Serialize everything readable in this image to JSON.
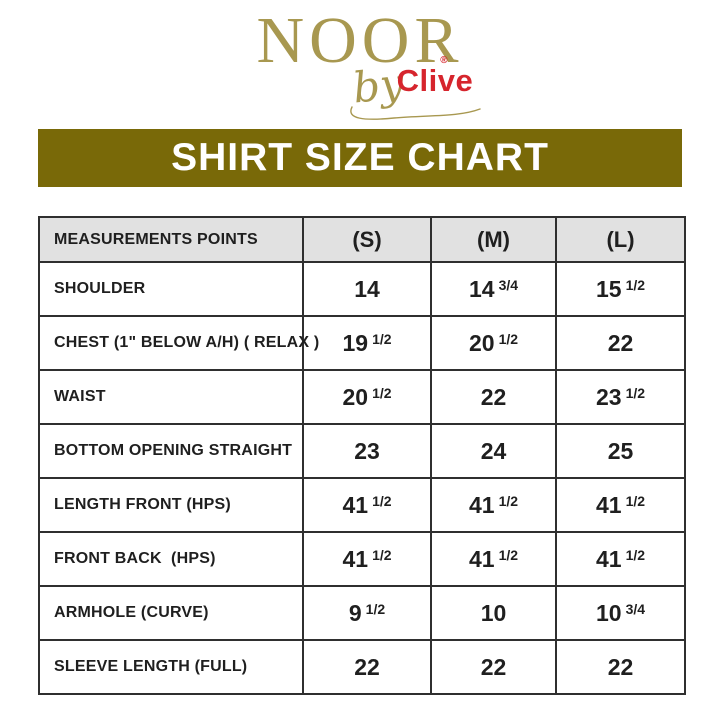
{
  "logo": {
    "brand": "NOOR",
    "by_text": "by",
    "sub_brand": "Clive",
    "registered_mark": "®",
    "brand_color": "#a89850",
    "sub_brand_color": "#d6252d"
  },
  "banner": {
    "title": "SHIRT SIZE CHART",
    "bg_color": "#796908",
    "text_color": "#ffffff"
  },
  "size_chart": {
    "header": {
      "measurements_label": "MEASUREMENTS POINTS",
      "sizes": [
        "(S)",
        "(M)",
        "(L)"
      ]
    },
    "rows": [
      {
        "label": "SHOULDER",
        "values": [
          "14",
          "14 3/4",
          "15 1/2"
        ]
      },
      {
        "label": "CHEST (1\" BELOW A/H) ( RELAX )",
        "values": [
          "19 1/2",
          "20 1/2",
          "22"
        ]
      },
      {
        "label": "WAIST",
        "values": [
          "20 1/2",
          "22",
          "23 1/2"
        ]
      },
      {
        "label": "BOTTOM OPENING STRAIGHT",
        "values": [
          "23",
          "24",
          "25"
        ]
      },
      {
        "label": "LENGTH FRONT (HPS)",
        "values": [
          "41 1/2",
          "41 1/2",
          "41 1/2"
        ]
      },
      {
        "label": "FRONT BACK  (HPS)",
        "values": [
          "41 1/2",
          "41 1/2",
          "41 1/2"
        ]
      },
      {
        "label": "ARMHOLE (CURVE)",
        "values": [
          "9 1/2",
          "10",
          "10 3/4"
        ]
      },
      {
        "label": "SLEEVE LENGTH (FULL)",
        "values": [
          "22",
          "22",
          "22"
        ]
      }
    ]
  }
}
